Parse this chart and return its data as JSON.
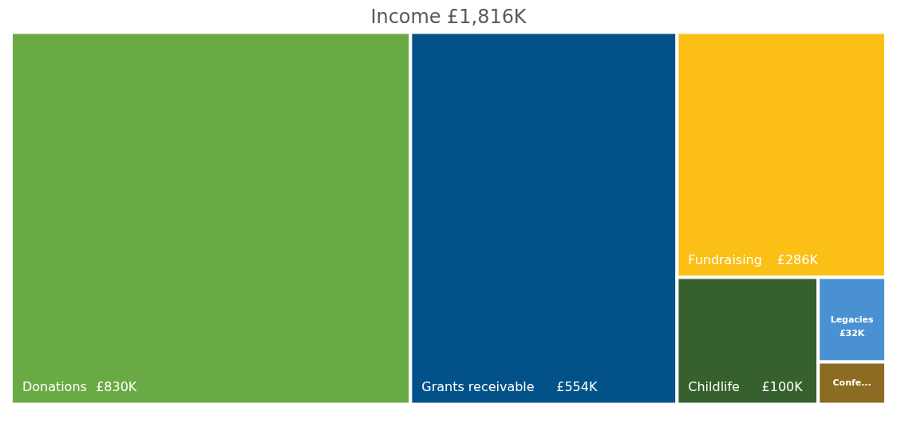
{
  "chart_data": {
    "type": "other",
    "title": "Income £1,816K",
    "categories": [
      "Donations",
      "Grants receivable",
      "Fundraising",
      "Childlife",
      "Legacies",
      "Confe..."
    ],
    "values": [
      830,
      554,
      286,
      100,
      32,
      null
    ],
    "value_labels": [
      "£830K",
      "£554K",
      "£286K",
      "£100K",
      "£32K",
      null
    ],
    "colors": [
      "#6aaa45",
      "#025289",
      "#fbbf16",
      "#36602d",
      "#4a91d1",
      "#8c6b22"
    ]
  }
}
